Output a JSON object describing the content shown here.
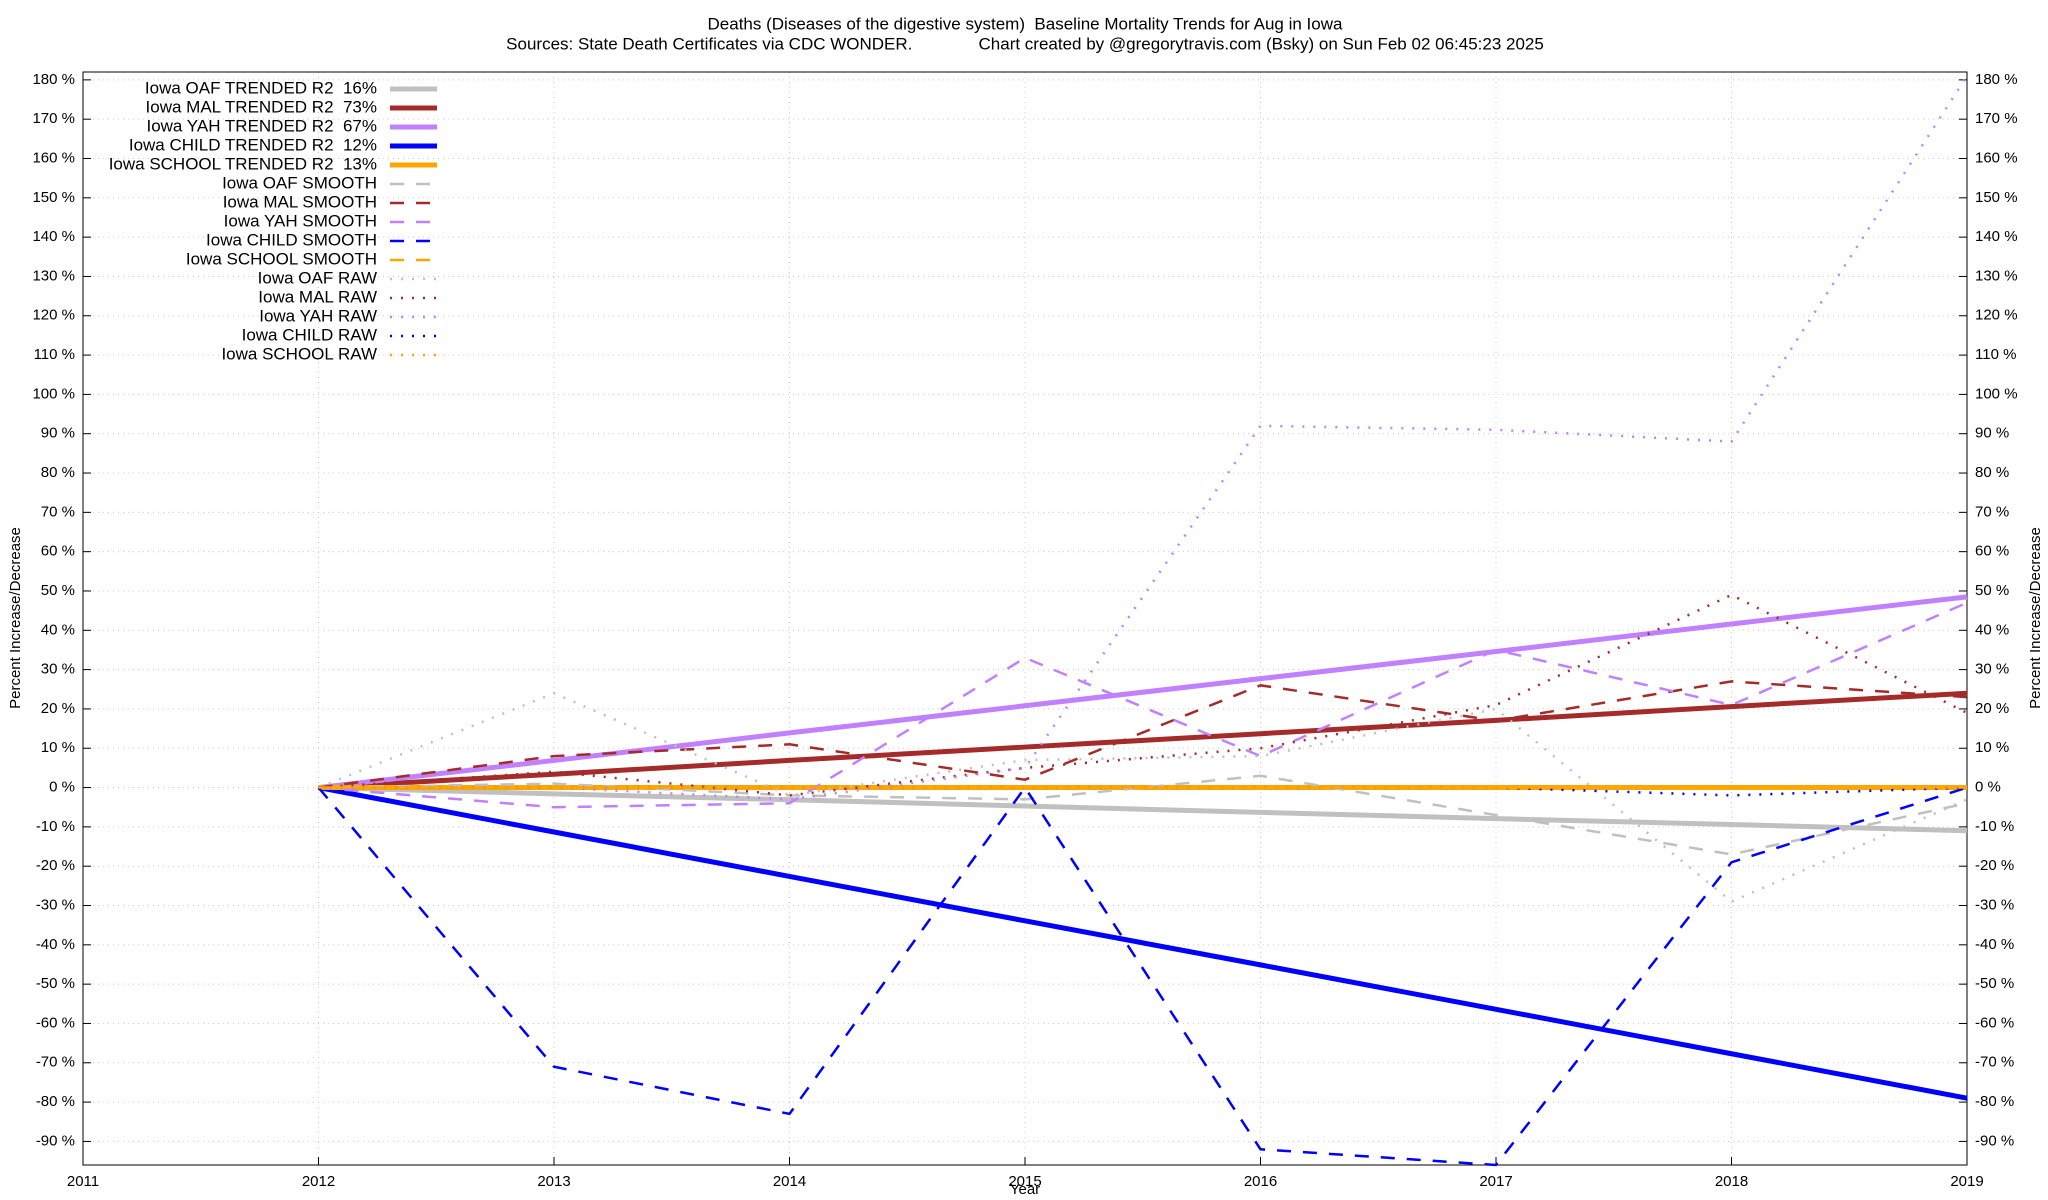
{
  "chart_data": {
    "type": "line",
    "title": "Deaths (Diseases of the digestive system)  Baseline Mortality Trends for Aug in Iowa",
    "subtitle": "Sources: State Death Certificates via CDC WONDER.              Chart created by @gregorytravis.com (Bsky) on Sun Feb 02 06:45:23 2025",
    "x_label": "Year",
    "y_label": "Percent Increase/Decrease",
    "y2_label": "Percent Increase/Decrease",
    "x": [
      2012,
      2013,
      2014,
      2015,
      2016,
      2017,
      2018,
      2019
    ],
    "xlim": [
      2011,
      2019
    ],
    "xticks": [
      2011,
      2012,
      2013,
      2014,
      2015,
      2016,
      2017,
      2018,
      2019
    ],
    "ylim": [
      -96,
      182
    ],
    "yticks": [
      {
        "value": -90,
        "label": "-90 %"
      },
      {
        "value": -80,
        "label": "-80 %"
      },
      {
        "value": -70,
        "label": "-70 %"
      },
      {
        "value": -60,
        "label": "-60 %"
      },
      {
        "value": -50,
        "label": "-50 %"
      },
      {
        "value": -40,
        "label": "-40 %"
      },
      {
        "value": -30,
        "label": "-30 %"
      },
      {
        "value": -20,
        "label": "-20 %"
      },
      {
        "value": -10,
        "label": "-10 %"
      },
      {
        "value": 0,
        "label": "0 %"
      },
      {
        "value": 10,
        "label": "10 %"
      },
      {
        "value": 20,
        "label": "20 %"
      },
      {
        "value": 30,
        "label": "30 %"
      },
      {
        "value": 40,
        "label": "40 %"
      },
      {
        "value": 50,
        "label": "50 %"
      },
      {
        "value": 60,
        "label": "60 %"
      },
      {
        "value": 70,
        "label": "70 %"
      },
      {
        "value": 80,
        "label": "80 %"
      },
      {
        "value": 90,
        "label": "90 %"
      },
      {
        "value": 100,
        "label": "100 %"
      },
      {
        "value": 110,
        "label": "110 %"
      },
      {
        "value": 120,
        "label": "120 %"
      },
      {
        "value": 130,
        "label": "130 %"
      },
      {
        "value": 140,
        "label": "140 %"
      },
      {
        "value": 150,
        "label": "150 %"
      },
      {
        "value": 160,
        "label": "160 %"
      },
      {
        "value": 170,
        "label": "170 %"
      },
      {
        "value": 180,
        "label": "180 %"
      }
    ],
    "grid": true,
    "legend_position": "top-left",
    "series": [
      {
        "name": "Iowa OAF TRENDED R2  16%",
        "color": "#c0c0c0",
        "style": "solid",
        "values": [
          0,
          -1.6,
          -3.1,
          -4.7,
          -6.3,
          -7.9,
          -9.4,
          -11
        ]
      },
      {
        "name": "Iowa MAL TRENDED R2  73%",
        "color": "#a52a2a",
        "style": "solid",
        "values": [
          0,
          3.4,
          6.9,
          10.3,
          13.7,
          17.1,
          20.6,
          24
        ]
      },
      {
        "name": "Iowa YAH TRENDED R2  67%",
        "color": "#c080ff",
        "style": "solid",
        "values": [
          0,
          6.9,
          13.9,
          20.8,
          27.7,
          34.6,
          41.6,
          48.5
        ]
      },
      {
        "name": "Iowa CHILD TRENDED R2  12%",
        "color": "#0000ff",
        "style": "solid",
        "values": [
          0,
          -11.3,
          -22.6,
          -33.9,
          -45.1,
          -56.4,
          -67.7,
          -79
        ]
      },
      {
        "name": "Iowa SCHOOL TRENDED R2  13%",
        "color": "#ffa500",
        "style": "solid",
        "values": [
          0,
          0,
          0,
          0,
          0,
          0,
          0,
          0
        ]
      },
      {
        "name": "Iowa OAF SMOOTH",
        "color": "#c0c0c0",
        "style": "dashed",
        "values": [
          0,
          1,
          -2,
          -3,
          3,
          -7,
          -17,
          -4
        ]
      },
      {
        "name": "Iowa MAL SMOOTH",
        "color": "#a52a2a",
        "style": "dashed",
        "values": [
          0,
          8,
          11,
          2,
          26,
          17,
          27,
          23
        ]
      },
      {
        "name": "Iowa YAH SMOOTH",
        "color": "#c080ff",
        "style": "dashed",
        "values": [
          0,
          -5,
          -4,
          33,
          8,
          35,
          21,
          47
        ]
      },
      {
        "name": "Iowa CHILD SMOOTH",
        "color": "#0000ff",
        "style": "dashed",
        "values": [
          0,
          -71,
          -83,
          0,
          -92,
          -96,
          -19,
          0
        ]
      },
      {
        "name": "Iowa SCHOOL SMOOTH",
        "color": "#ffa500",
        "style": "dashed",
        "values": [
          0,
          0,
          0,
          0,
          0,
          0,
          0,
          0
        ]
      },
      {
        "name": "Iowa OAF RAW",
        "color": "#c0c0c0",
        "style": "dotted",
        "values": [
          0,
          24,
          -2,
          7,
          8,
          20,
          -29,
          -3
        ]
      },
      {
        "name": "Iowa MAL RAW",
        "color": "#a52a2a",
        "style": "dotted",
        "values": [
          0,
          4,
          -2,
          5,
          10,
          21,
          49,
          19
        ]
      },
      {
        "name": "Iowa YAH RAW",
        "color": "#c080ff",
        "style": "dotted",
        "values": [
          0,
          0,
          -3,
          5,
          92,
          91,
          88,
          181
        ]
      },
      {
        "name": "Iowa CHILD RAW",
        "color": "#0000ff",
        "style": "dotted",
        "values": [
          0,
          0,
          0,
          0,
          0,
          0,
          -2,
          0
        ]
      },
      {
        "name": "Iowa SCHOOL RAW",
        "color": "#ffa500",
        "style": "dotted",
        "values": [
          0,
          0,
          0,
          0,
          0,
          0,
          0,
          0
        ]
      }
    ]
  }
}
